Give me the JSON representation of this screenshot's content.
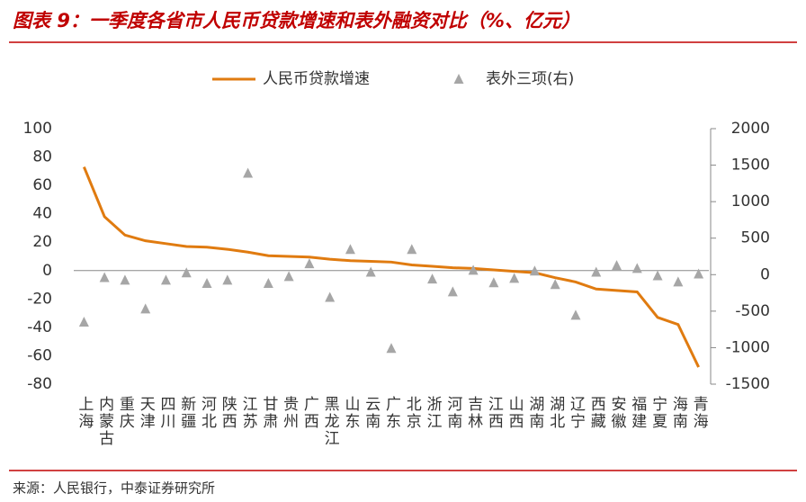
{
  "chart_data": {
    "type": "line",
    "title": "图表 9：一季度各省市人民币贷款增速和表外融资对比（%、亿元）",
    "source": "来源：人民银行，中泰证券研究所",
    "categories": [
      "上海",
      "内蒙古",
      "重庆",
      "天津",
      "四川",
      "新疆",
      "河北",
      "陕西",
      "江苏",
      "甘肃",
      "贵州",
      "广西",
      "黑龙江",
      "山东",
      "云南",
      "广东",
      "北京",
      "浙江",
      "河南",
      "吉林",
      "江西",
      "山西",
      "湖南",
      "湖北",
      "辽宁",
      "西藏",
      "安徽",
      "福建",
      "宁夏",
      "海南",
      "青海"
    ],
    "series": [
      {
        "name": "人民币贷款增速",
        "type": "line",
        "color": "#e07b10",
        "values": [
          73,
          38,
          25,
          21,
          19,
          17,
          16.5,
          15,
          13,
          10.5,
          10,
          9.5,
          8,
          7,
          6.5,
          6,
          4,
          3,
          2,
          1.5,
          0.5,
          -0.5,
          -1.5,
          -5,
          -8,
          -13,
          -14,
          -15,
          -33,
          -38,
          -68
        ]
      },
      {
        "name": "表外三项(右)",
        "type": "scatter",
        "axis": "y2",
        "color": "#a6a6a6",
        "values": [
          -650,
          -40,
          -75,
          -470,
          -75,
          25,
          -120,
          -75,
          1390,
          -120,
          -25,
          150,
          -310,
          345,
          35,
          -1010,
          345,
          -60,
          -235,
          60,
          -110,
          -50,
          50,
          -135,
          -555,
          35,
          125,
          85,
          -15,
          -100,
          10
        ]
      }
    ],
    "ylim": [
      -80,
      100
    ],
    "yticks": [
      -80,
      -60,
      -40,
      -20,
      0,
      20,
      40,
      60,
      80,
      100
    ],
    "y2lim": [
      -1500,
      2000
    ],
    "y2ticks": [
      -1500,
      -1000,
      -500,
      0,
      500,
      1000,
      1500,
      2000
    ],
    "legend": "top"
  }
}
